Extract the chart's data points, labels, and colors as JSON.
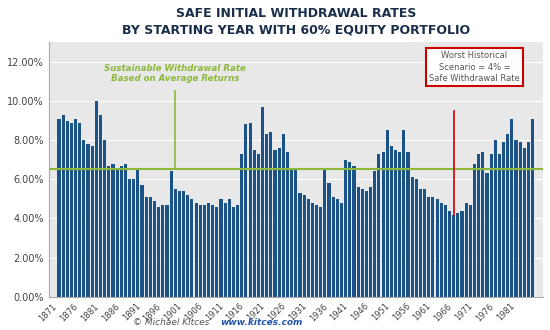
{
  "title_line1": "SAFE INITIAL WITHDRAWAL RATES",
  "title_line2": "BY STARTING YEAR WITH 60% EQUITY PORTFOLIO",
  "bar_color": "#1b5288",
  "horizontal_line_value": 0.065,
  "horizontal_line_color": "#8db83a",
  "vertical_line_year": 1899,
  "vertical_line_color": "#8db83a",
  "worst_year": 1966,
  "worst_line_color": "#cc0000",
  "annotation_sustainable": "Sustainable Withdrawal Rate\nBased on Average Returns",
  "annotation_worst": "Worst Historical\nScenario = 4% =\nSafe Withdrawal Rate",
  "watermark_left": "© Michael Kitces",
  "watermark_right": "www.kitces.com",
  "ylim": [
    0.0,
    0.13
  ],
  "yticks": [
    0.0,
    0.02,
    0.04,
    0.06,
    0.08,
    0.1,
    0.12
  ],
  "background_color": "#f0f0f0",
  "plot_bg_color": "#e8e8e8",
  "years": [
    1871,
    1872,
    1873,
    1874,
    1875,
    1876,
    1877,
    1878,
    1879,
    1880,
    1881,
    1882,
    1883,
    1884,
    1885,
    1886,
    1887,
    1888,
    1889,
    1890,
    1891,
    1892,
    1893,
    1894,
    1895,
    1896,
    1897,
    1898,
    1899,
    1900,
    1901,
    1902,
    1903,
    1904,
    1905,
    1906,
    1907,
    1908,
    1909,
    1910,
    1911,
    1912,
    1913,
    1914,
    1915,
    1916,
    1917,
    1918,
    1919,
    1920,
    1921,
    1922,
    1923,
    1924,
    1925,
    1926,
    1927,
    1928,
    1929,
    1930,
    1931,
    1932,
    1933,
    1934,
    1935,
    1936,
    1937,
    1938,
    1939,
    1940,
    1941,
    1942,
    1943,
    1944,
    1945,
    1946,
    1947,
    1948,
    1949,
    1950,
    1951,
    1952,
    1953,
    1954,
    1955,
    1956,
    1957,
    1958,
    1959,
    1960,
    1961,
    1962,
    1963,
    1964,
    1965,
    1966,
    1967,
    1968,
    1969,
    1970,
    1971,
    1972,
    1973,
    1974,
    1975,
    1976,
    1977,
    1978,
    1979,
    1980,
    1981,
    1982,
    1983,
    1984,
    1985
  ],
  "values": [
    0.091,
    0.093,
    0.09,
    0.089,
    0.091,
    0.089,
    0.08,
    0.078,
    0.077,
    0.1,
    0.093,
    0.08,
    0.067,
    0.068,
    0.065,
    0.067,
    0.068,
    0.06,
    0.06,
    0.065,
    0.057,
    0.051,
    0.051,
    0.049,
    0.046,
    0.047,
    0.047,
    0.064,
    0.055,
    0.054,
    0.054,
    0.052,
    0.05,
    0.048,
    0.047,
    0.047,
    0.048,
    0.047,
    0.046,
    0.05,
    0.048,
    0.05,
    0.046,
    0.047,
    0.073,
    0.088,
    0.089,
    0.075,
    0.073,
    0.097,
    0.083,
    0.084,
    0.075,
    0.076,
    0.083,
    0.074,
    0.065,
    0.065,
    0.053,
    0.052,
    0.05,
    0.048,
    0.047,
    0.046,
    0.065,
    0.058,
    0.051,
    0.05,
    0.048,
    0.07,
    0.069,
    0.067,
    0.056,
    0.055,
    0.054,
    0.056,
    0.064,
    0.073,
    0.074,
    0.085,
    0.077,
    0.075,
    0.074,
    0.085,
    0.074,
    0.061,
    0.06,
    0.055,
    0.055,
    0.051,
    0.051,
    0.05,
    0.048,
    0.047,
    0.044,
    0.042,
    0.043,
    0.044,
    0.048,
    0.047,
    0.068,
    0.073,
    0.074,
    0.063,
    0.073,
    0.08,
    0.073,
    0.079,
    0.083,
    0.091,
    0.08,
    0.079,
    0.076,
    0.079,
    0.091
  ]
}
